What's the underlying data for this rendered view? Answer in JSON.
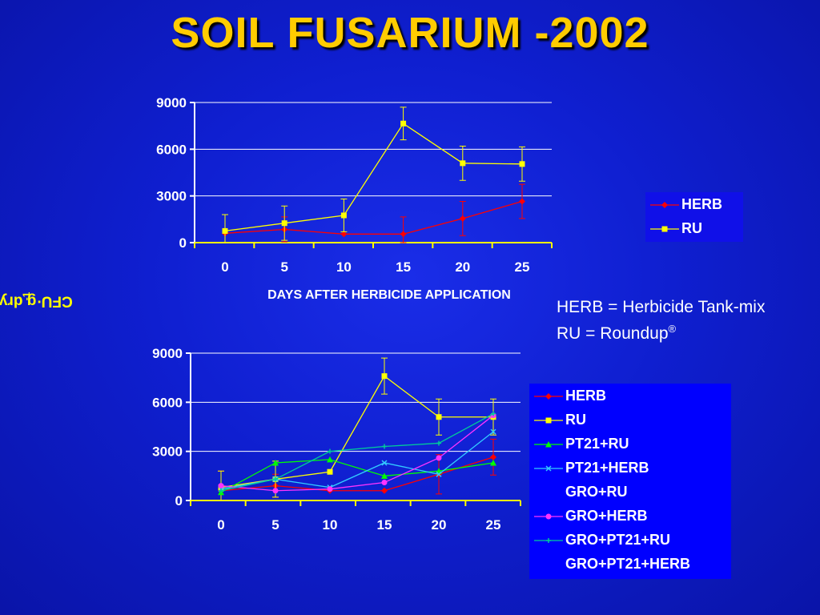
{
  "slide": {
    "title": "SOIL FUSARIUM -2002",
    "y_axis_label": "CFU·g dry soil",
    "y_axis_label_sup": "-1",
    "definitions": [
      {
        "text": "HERB = Herbicide Tank-mix",
        "sup": ""
      },
      {
        "text": "RU = Roundup",
        "sup": "®"
      }
    ]
  },
  "chart_data": [
    {
      "type": "line",
      "xlabel": "DAYS AFTER HERBICIDE APPLICATION",
      "ylabel": "CFU·g dry soil-1",
      "x": [
        0,
        5,
        10,
        15,
        20,
        25
      ],
      "ylim": [
        0,
        9000
      ],
      "yticks": [
        0,
        3000,
        6000,
        9000
      ],
      "grid": true,
      "legend_position": "right",
      "series": [
        {
          "name": "HERB",
          "color": "#ff0000",
          "marker": "diamond",
          "values": [
            600,
            850,
            550,
            550,
            1550,
            2650
          ],
          "errors": [
            1200,
            800,
            0,
            1100,
            1100,
            1100
          ]
        },
        {
          "name": "RU",
          "color": "#ffff00",
          "marker": "square",
          "values": [
            750,
            1250,
            1750,
            7650,
            5100,
            5050
          ],
          "errors": [
            1050,
            1100,
            1050,
            1050,
            1100,
            1100
          ]
        }
      ]
    },
    {
      "type": "line",
      "x": [
        0,
        5,
        10,
        15,
        20,
        25
      ],
      "ylim": [
        0,
        9000
      ],
      "yticks": [
        0,
        3000,
        6000,
        9000
      ],
      "grid": true,
      "legend_position": "right",
      "series": [
        {
          "name": "HERB",
          "color": "#ff0000",
          "marker": "diamond",
          "values": [
            600,
            900,
            600,
            600,
            1600,
            2650
          ],
          "errors": [
            1200,
            700,
            0,
            0,
            1200,
            1100
          ]
        },
        {
          "name": "RU",
          "color": "#ffff00",
          "marker": "square",
          "values": [
            800,
            1300,
            1750,
            7600,
            5100,
            5100
          ],
          "errors": [
            1000,
            1100,
            0,
            1100,
            1100,
            1100
          ]
        },
        {
          "name": "PT21+RU",
          "color": "#00ff00",
          "marker": "triangle",
          "values": [
            500,
            2300,
            2500,
            1500,
            1800,
            2300
          ]
        },
        {
          "name": "PT21+HERB",
          "color": "#33ccff",
          "marker": "x",
          "values": [
            700,
            1300,
            800,
            2300,
            1600,
            4200
          ]
        },
        {
          "name": "GRO+RU",
          "color": "#ffff00",
          "marker": "none",
          "hidden": true,
          "values": [
            800,
            1300,
            1750,
            7600,
            5100,
            5100
          ]
        },
        {
          "name": "GRO+HERB",
          "color": "#ff33ff",
          "marker": "circle",
          "values": [
            900,
            600,
            700,
            1100,
            2600,
            5200
          ]
        },
        {
          "name": "GRO+PT21+RU",
          "color": "#00cc99",
          "marker": "plus",
          "values": [
            600,
            1300,
            3000,
            3300,
            3500,
            5300
          ]
        },
        {
          "name": "GRO+PT21+HERB",
          "color": "#ffffff",
          "marker": "none",
          "hidden": true,
          "values": [
            800,
            1100,
            700,
            1200,
            1800,
            2700
          ]
        }
      ]
    }
  ]
}
